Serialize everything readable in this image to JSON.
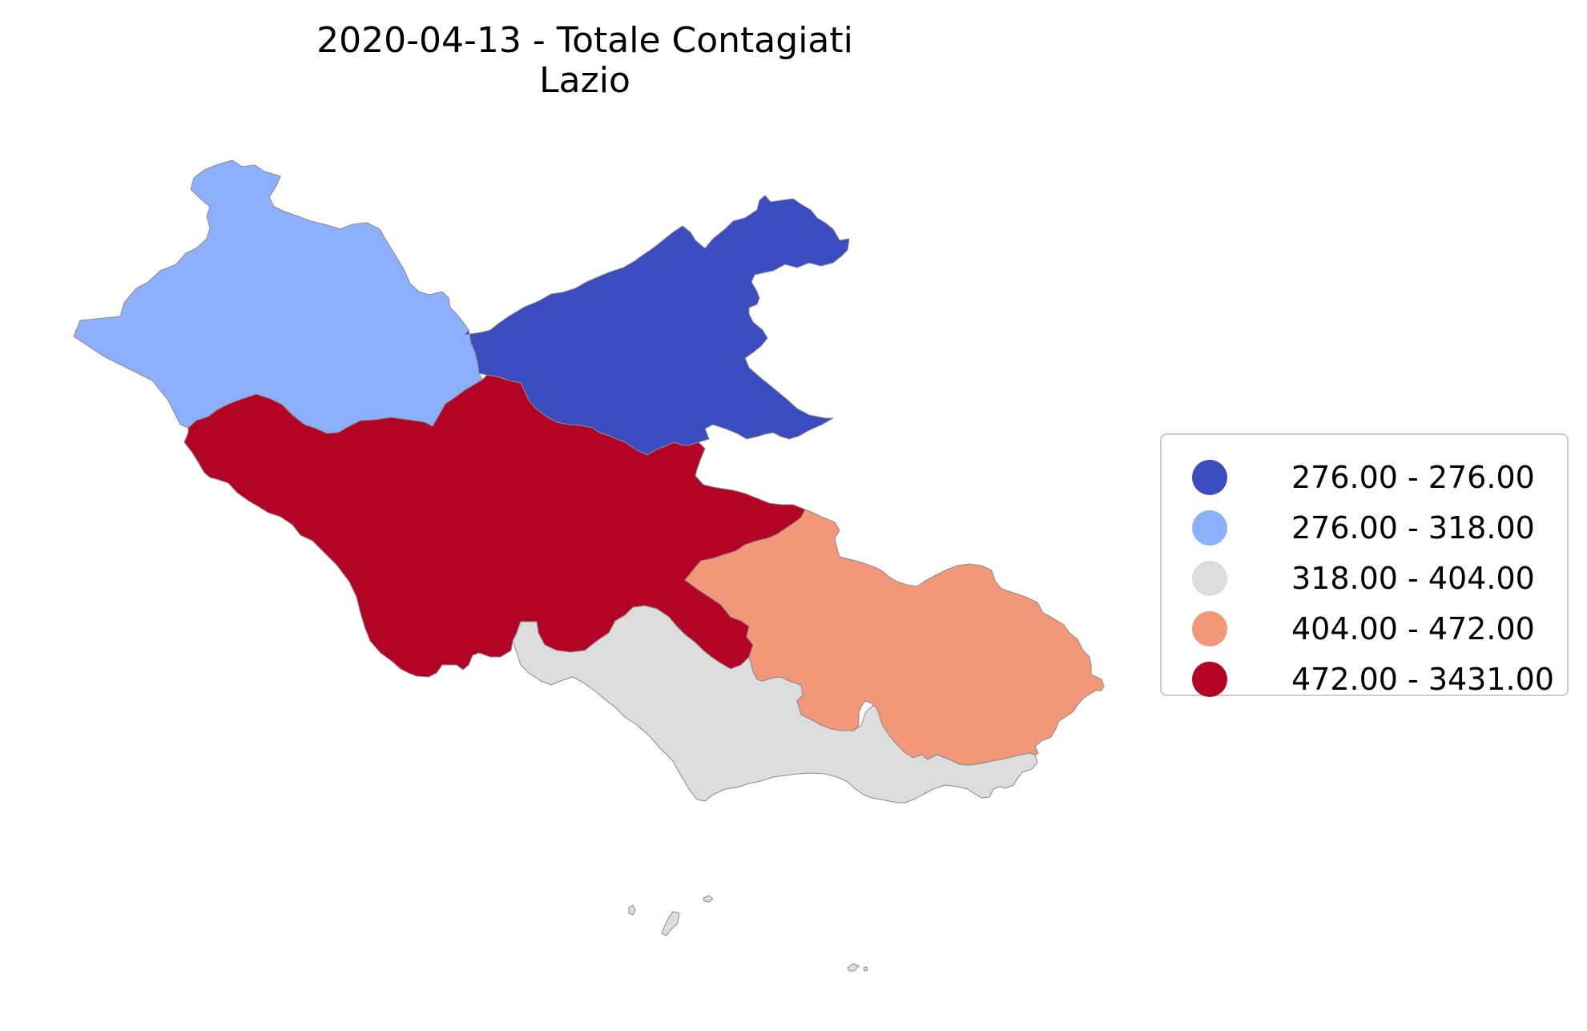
{
  "title": {
    "line1": "2020-04-13 - Totale Contagiati",
    "line2": "Lazio"
  },
  "legend": {
    "items": [
      {
        "label": "276.00 - 276.00",
        "color": "#3b4cc0"
      },
      {
        "label": "276.00 - 318.00",
        "color": "#8db0fe"
      },
      {
        "label": "318.00 - 404.00",
        "color": "#dddddd"
      },
      {
        "label": "404.00 - 472.00",
        "color": "#f29879"
      },
      {
        "label": "472.00 - 3431.00",
        "color": "#b40426"
      }
    ]
  },
  "map_data": {
    "region": "Lazio",
    "date": "2020-04-13",
    "provinces": [
      {
        "class": "276.00 - 276.00",
        "color": "#3b4cc0"
      },
      {
        "class": "276.00 - 318.00",
        "color": "#8db0fe"
      },
      {
        "class": "318.00 - 404.00",
        "color": "#dddddd"
      },
      {
        "class": "404.00 - 472.00",
        "color": "#f29879"
      },
      {
        "class": "472.00 - 3431.00",
        "color": "#b40426"
      }
    ]
  }
}
